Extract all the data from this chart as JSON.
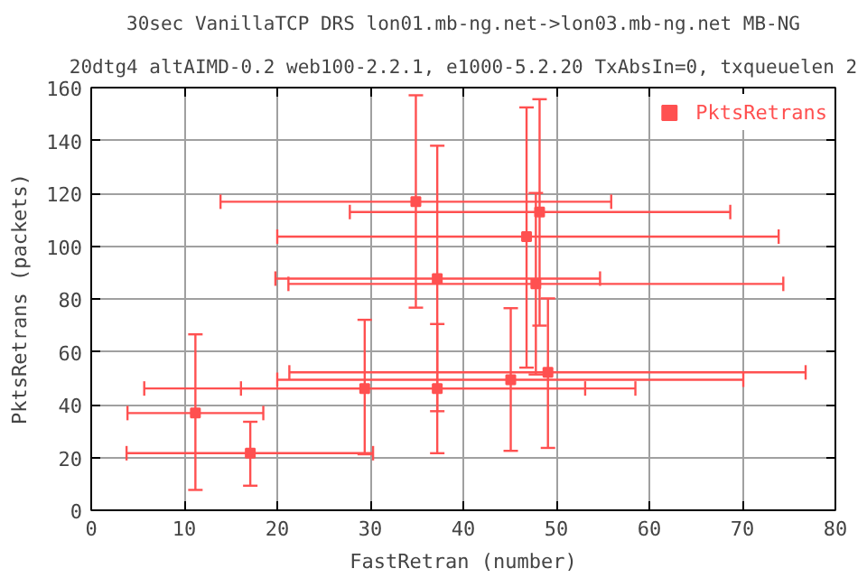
{
  "chart_data": {
    "type": "scatter",
    "title": "30sec VanillaTCP DRS lon01.mb-ng.net->lon03.mb-ng.net MB-NG",
    "subtitle": "20dtg4 altAIMD-0.2 web100-2.2.1, e1000-5.2.20 TxAbsIn=0, txqueuelen 2",
    "xlabel": "FastRetran (number)",
    "ylabel": "PktsRetrans (packets)",
    "x": [
      34.9,
      37.2,
      11.2,
      17.1,
      29.4,
      37.2,
      46.8,
      48.2,
      47.8,
      45.1,
      49.1
    ],
    "series": [
      {
        "name": "PktsRetrans",
        "color": "#ff5050",
        "values": [
          116.8,
          87.7,
          36.8,
          21.6,
          46.1,
          46.1,
          103.6,
          112.9,
          85.7,
          49.4,
          52.2
        ],
        "errors": [
          [
            76.7,
            157.1
          ],
          [
            37.5,
            138
          ],
          [
            7.7,
            66.6
          ],
          [
            9.3,
            33.5
          ],
          [
            21.2,
            72.1
          ],
          [
            21.6,
            70.5
          ],
          [
            54.0,
            152.5
          ],
          [
            69.9,
            155.6
          ],
          [
            51.4,
            120.1
          ],
          [
            22.5,
            76.5
          ],
          [
            23.6,
            80.2
          ]
        ],
        "xerrors": [
          [
            13.9,
            55.9
          ],
          [
            19.8,
            54.7
          ],
          [
            3.9,
            18.5
          ],
          [
            3.8,
            30.3
          ],
          [
            5.7,
            53.1
          ],
          [
            16.1,
            58.5
          ],
          [
            20.0,
            73.9
          ],
          [
            27.8,
            68.7
          ],
          [
            21.2,
            74.4
          ],
          [
            20.0,
            70.1
          ],
          [
            21.3,
            76.8
          ]
        ]
      }
    ],
    "xlim": [
      0,
      80
    ],
    "xticks": [
      0,
      10,
      20,
      30,
      40,
      50,
      60,
      70,
      80
    ],
    "ylim": [
      0,
      160
    ],
    "yticks": [
      0,
      20,
      40,
      60,
      80,
      100,
      120,
      140,
      160
    ],
    "grid": true,
    "legend": "top right",
    "marker": "square"
  }
}
